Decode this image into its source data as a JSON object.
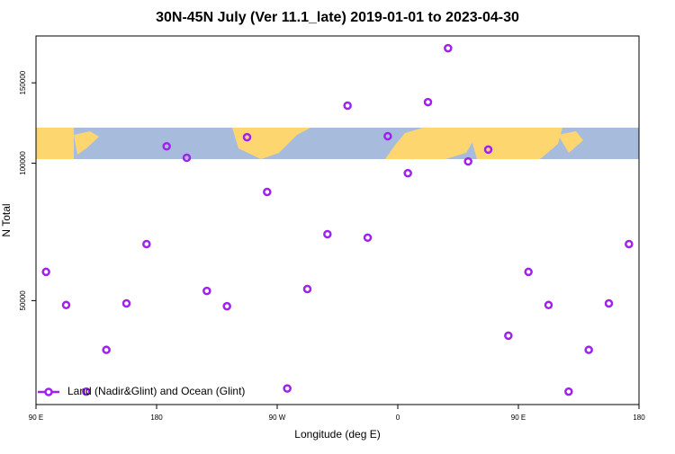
{
  "chart_data": {
    "type": "scatter",
    "title": "30N-45N July (Ver 11.1_late)   2019-01-01 to 2023-04-30",
    "x_label": "Longitude (deg E)",
    "y_label": "N Total",
    "ylog": true,
    "legend": "bottom-left",
    "xlim": [
      90,
      540
    ],
    "xticks": [
      {
        "value": 90,
        "label": "90 E"
      },
      180,
      {
        "value": 270,
        "label": "90 W"
      },
      {
        "value": 360,
        "label": "0"
      },
      {
        "value": 450,
        "label": "90 E"
      },
      {
        "value": 540,
        "label": "180"
      }
    ],
    "ylim": [
      29600,
      190000
    ],
    "yticks": [
      50000,
      100000,
      150000
    ],
    "series": [
      {
        "name": "Land (Nadir&Glint) and Ocean (Glint)",
        "color": "#a020f0",
        "x": [
          97.5,
          112.5,
          127.5,
          142.5,
          157.5,
          172.5,
          187.5,
          202.5,
          217.5,
          232.5,
          247.5,
          262.5,
          277.5,
          292.5,
          307.5,
          322.5,
          337.5,
          352.5,
          367.5,
          382.5,
          397.5,
          412.5,
          427.5,
          442.5,
          457.5,
          472.5,
          487.5,
          502.5,
          517.5,
          532.5
        ],
        "values": [
          57800,
          48900,
          31600,
          39000,
          49300,
          66500,
          108900,
          102800,
          52500,
          48600,
          114000,
          86500,
          32100,
          53000,
          69900,
          133700,
          68700,
          114600,
          95100,
          136100,
          178600,
          100900,
          107100,
          41900,
          57800,
          48900,
          31600,
          39000,
          49300,
          66500
        ]
      }
    ]
  }
}
